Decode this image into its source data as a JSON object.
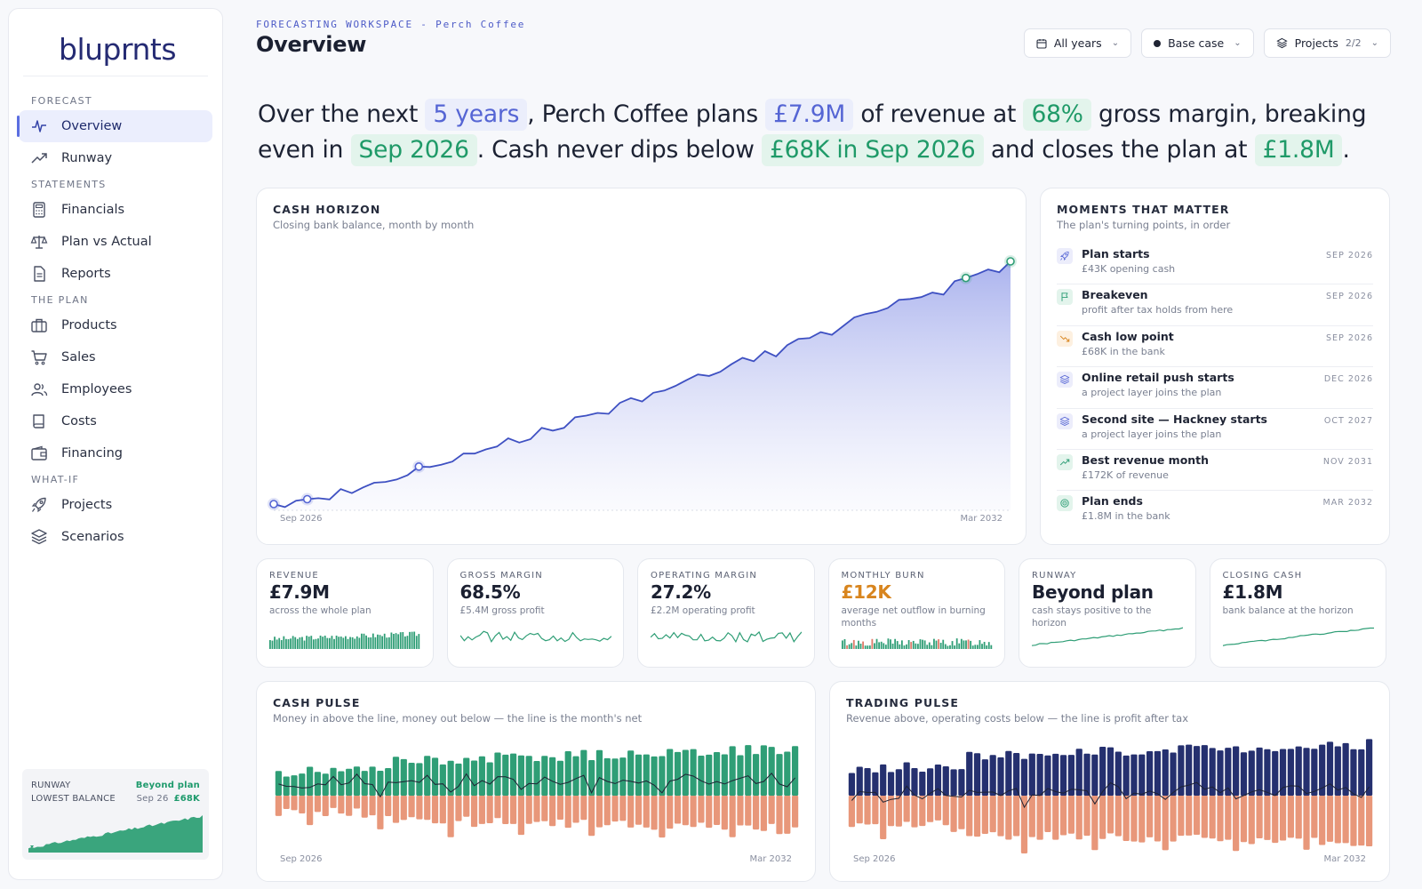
{
  "app": {
    "logo": "bluprnts"
  },
  "sidebar": {
    "groups": [
      {
        "label": "FORECAST",
        "items": [
          {
            "label": "Overview",
            "icon": "activity-icon",
            "active": true
          },
          {
            "label": "Runway",
            "icon": "trending-up-icon"
          }
        ]
      },
      {
        "label": "STATEMENTS",
        "items": [
          {
            "label": "Financials",
            "icon": "calculator-icon"
          },
          {
            "label": "Plan vs Actual",
            "icon": "scale-icon"
          },
          {
            "label": "Reports",
            "icon": "document-icon"
          }
        ]
      },
      {
        "label": "THE PLAN",
        "items": [
          {
            "label": "Products",
            "icon": "briefcase-icon"
          },
          {
            "label": "Sales",
            "icon": "cart-icon"
          },
          {
            "label": "Employees",
            "icon": "users-icon"
          },
          {
            "label": "Costs",
            "icon": "book-icon"
          },
          {
            "label": "Financing",
            "icon": "wallet-icon"
          }
        ]
      },
      {
        "label": "WHAT-IF",
        "items": [
          {
            "label": "Projects",
            "icon": "rocket-icon"
          },
          {
            "label": "Scenarios",
            "icon": "layers-icon"
          }
        ]
      }
    ],
    "runway_card": {
      "runway_label": "RUNWAY",
      "runway_value": "Beyond plan",
      "lowest_label": "LOWEST BALANCE",
      "lowest_date": "Sep 26",
      "lowest_value": "£68K"
    }
  },
  "header": {
    "eyebrow": "FORECASTING WORKSPACE - Perch Coffee",
    "title": "Overview",
    "filters": {
      "years": "All years",
      "scenario": "Base case",
      "projects_label": "Projects",
      "projects_count": "2/2"
    }
  },
  "narrative": {
    "p1": "Over the next",
    "years": "5 years",
    "p2": ", Perch Coffee plans",
    "revenue": "£7.9M",
    "p3": "of revenue at",
    "margin": "68%",
    "p4": "gross margin, breaking even in",
    "breakeven": "Sep 2026",
    "p5": ". Cash never dips below",
    "low": "£68K in Sep 2026",
    "p6": "and closes the plan at",
    "close": "£1.8M",
    "p7": "."
  },
  "cash_horizon": {
    "title": "CASH HORIZON",
    "subtitle": "Closing bank balance, month by month",
    "x_start": "Sep 2026",
    "x_end": "Mar 2032"
  },
  "moments": {
    "title": "MOMENTS THAT MATTER",
    "subtitle": "The plan's turning points, in order",
    "items": [
      {
        "title": "Plan starts",
        "sub": "£43K opening cash",
        "date": "SEP 2026",
        "icon": "rocket-icon"
      },
      {
        "title": "Breakeven",
        "sub": "profit after tax holds from here",
        "date": "SEP 2026",
        "icon": "flag-icon"
      },
      {
        "title": "Cash low point",
        "sub": "£68K in the bank",
        "date": "SEP 2026",
        "icon": "trending-down-icon"
      },
      {
        "title": "Online retail push starts",
        "sub": "a project layer joins the plan",
        "date": "DEC 2026",
        "icon": "layers-icon"
      },
      {
        "title": "Second site — Hackney starts",
        "sub": "a project layer joins the plan",
        "date": "OCT 2027",
        "icon": "layers-icon"
      },
      {
        "title": "Best revenue month",
        "sub": "£172K of revenue",
        "date": "NOV 2031",
        "icon": "trending-up-icon"
      },
      {
        "title": "Plan ends",
        "sub": "£1.8M in the bank",
        "date": "MAR 2032",
        "icon": "target-icon"
      }
    ]
  },
  "kpis": [
    {
      "label": "REVENUE",
      "value": "£7.9M",
      "sub": "across the whole plan"
    },
    {
      "label": "GROSS MARGIN",
      "value": "68.5%",
      "sub": "£5.4M gross profit"
    },
    {
      "label": "OPERATING MARGIN",
      "value": "27.2%",
      "sub": "£2.2M operating profit"
    },
    {
      "label": "MONTHLY BURN",
      "value": "£12K",
      "sub": "average net outflow in burning months"
    },
    {
      "label": "RUNWAY",
      "value": "Beyond plan",
      "sub": "cash stays positive to the horizon"
    },
    {
      "label": "CLOSING CASH",
      "value": "£1.8M",
      "sub": "bank balance at the horizon"
    }
  ],
  "cash_pulse": {
    "title": "CASH PULSE",
    "subtitle": "Money in above the line, money out below — the line is the month's net",
    "x_start": "Sep 2026",
    "x_end": "Mar 2032"
  },
  "trading_pulse": {
    "title": "TRADING PULSE",
    "subtitle": "Revenue above, operating costs below — the line is profit after tax",
    "x_start": "Sep 2026",
    "x_end": "Mar 2032"
  },
  "colors": {
    "accent": "#5565d4",
    "green": "#2f9e76",
    "orange": "#e8977a",
    "navy": "#25306f",
    "amber": "#d8851e"
  }
}
